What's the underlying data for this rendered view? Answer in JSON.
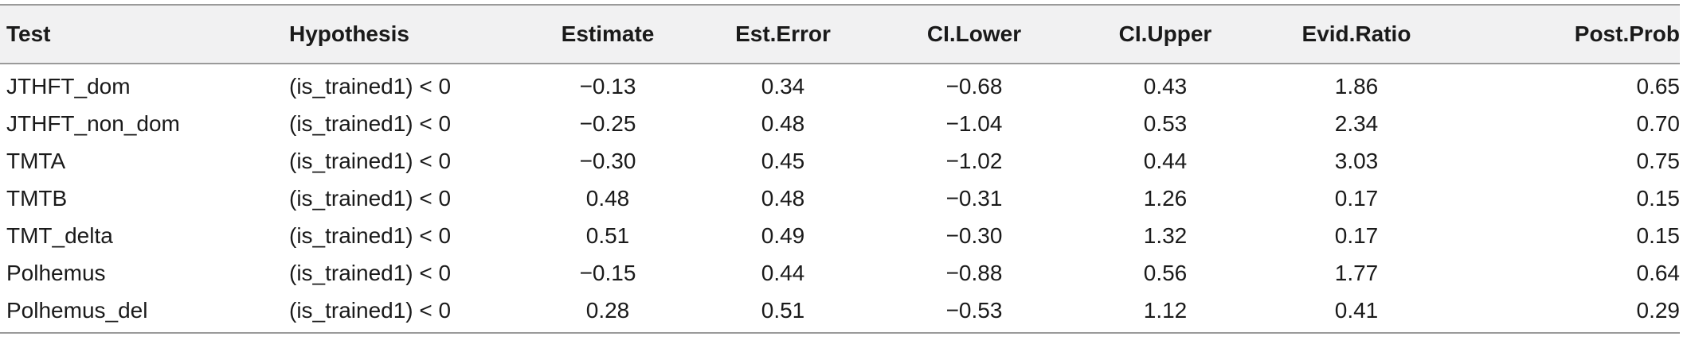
{
  "table": {
    "headers": [
      "Test",
      "Hypothesis",
      "Estimate",
      "Est.Error",
      "CI.Lower",
      "CI.Upper",
      "Evid.Ratio",
      "Post.Prob"
    ],
    "rows": [
      [
        "JTHFT_dom",
        "(is_trained1) < 0",
        "−0.13",
        "0.34",
        "−0.68",
        "0.43",
        "1.86",
        "0.65"
      ],
      [
        "JTHFT_non_dom",
        "(is_trained1) < 0",
        "−0.25",
        "0.48",
        "−1.04",
        "0.53",
        "2.34",
        "0.70"
      ],
      [
        "TMTA",
        "(is_trained1) < 0",
        "−0.30",
        "0.45",
        "−1.02",
        "0.44",
        "3.03",
        "0.75"
      ],
      [
        "TMTB",
        "(is_trained1) < 0",
        "0.48",
        "0.48",
        "−0.31",
        "1.26",
        "0.17",
        "0.15"
      ],
      [
        "TMT_delta",
        "(is_trained1) < 0",
        "0.51",
        "0.49",
        "−0.30",
        "1.32",
        "0.17",
        "0.15"
      ],
      [
        "Polhemus",
        "(is_trained1) < 0",
        "−0.15",
        "0.44",
        "−0.88",
        "0.56",
        "1.77",
        "0.64"
      ],
      [
        "Polhemus_del",
        "(is_trained1) < 0",
        "0.28",
        "0.51",
        "−0.53",
        "1.12",
        "0.41",
        "0.29"
      ]
    ]
  }
}
